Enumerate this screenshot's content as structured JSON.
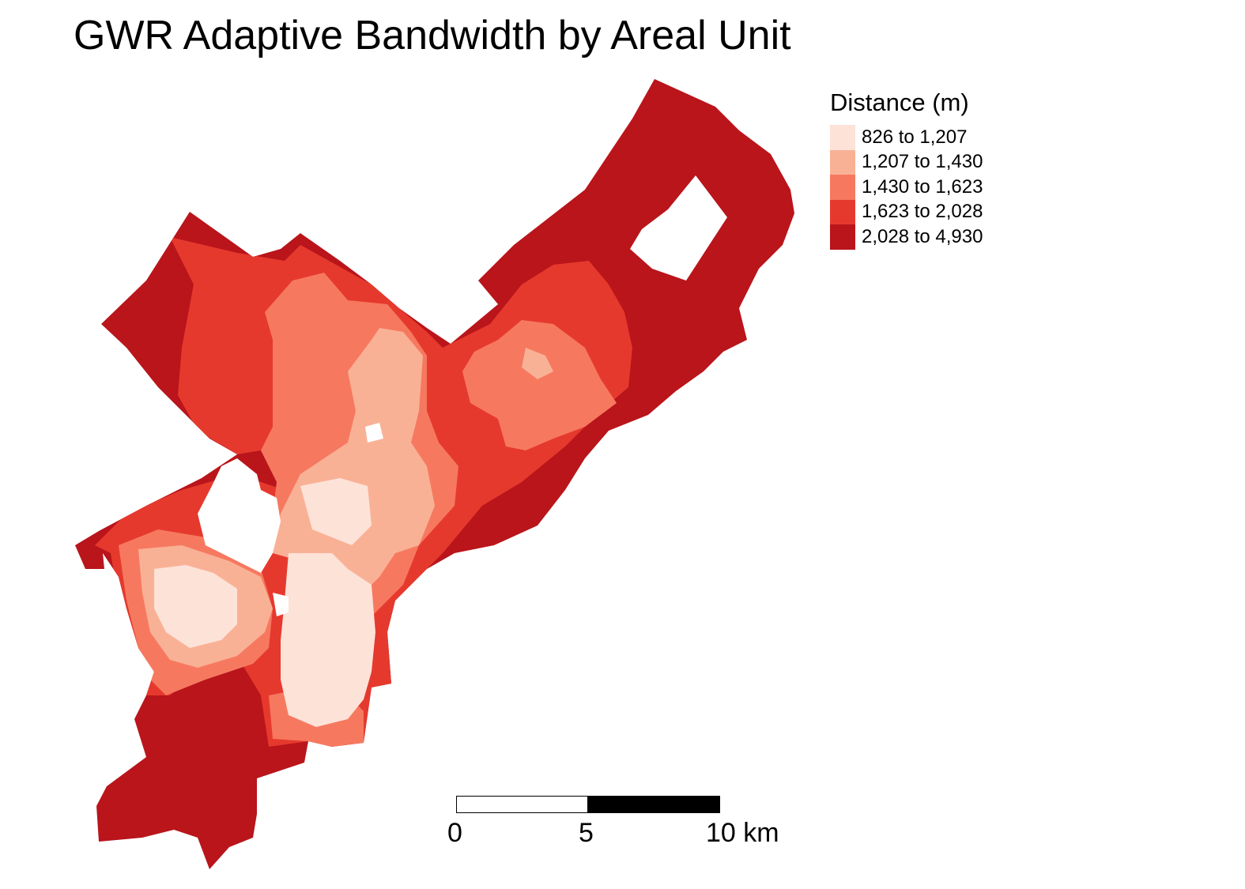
{
  "title": "GWR Adaptive Bandwidth by Areal Unit",
  "legend": {
    "title": "Distance (m)",
    "classes": [
      {
        "label": "826 to 1,207",
        "color": "#fde2d8"
      },
      {
        "label": "1,207 to 1,430",
        "color": "#f9b196"
      },
      {
        "label": "1,430 to 1,623",
        "color": "#f6795f"
      },
      {
        "label": "1,623 to 2,028",
        "color": "#e6392d"
      },
      {
        "label": "2,028 to 4,930",
        "color": "#b9151b"
      }
    ]
  },
  "scale_bar": {
    "labels": [
      "0",
      "5",
      "10 km"
    ],
    "colors": {
      "first": "#ffffff",
      "second": "#000000"
    }
  }
}
